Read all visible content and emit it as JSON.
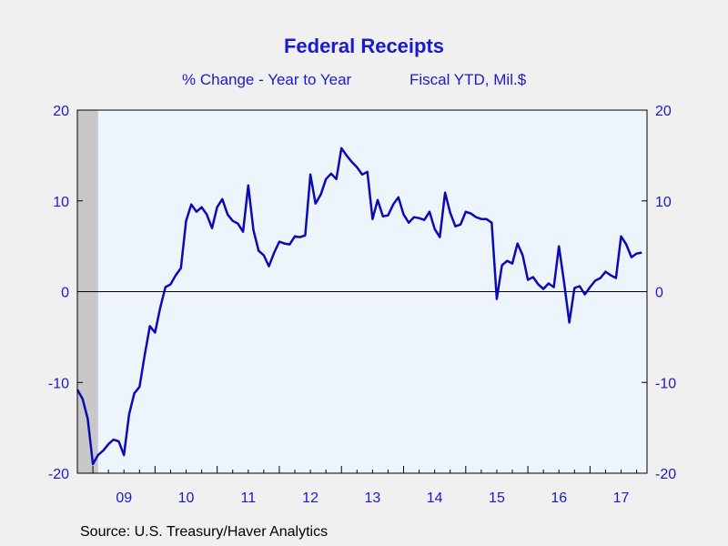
{
  "title": "Federal Receipts",
  "subtitle_left": "% Change - Year to Year",
  "subtitle_right": "Fiscal YTD, Mil.$",
  "source": "Source:  U.S. Treasury/Haver Analytics",
  "colors": {
    "title": "#1a1acc",
    "line": "#0a0ab4",
    "axis_labels": "#1a1acc",
    "plot_bg": "#eef4fc",
    "recession": "#c8c8c8"
  },
  "chart_data": {
    "type": "line",
    "title": "Federal Receipts",
    "subtitle": "% Change - Year to Year    Fiscal YTD, Mil.$",
    "ylim": [
      -20,
      20
    ],
    "yticks": [
      -20,
      -10,
      0,
      10,
      20
    ],
    "xlim": [
      2008.75,
      2017.917
    ],
    "xtick_labels": [
      {
        "label": "09",
        "center": 2009.5
      },
      {
        "label": "10",
        "center": 2010.5
      },
      {
        "label": "11",
        "center": 2011.5
      },
      {
        "label": "12",
        "center": 2012.5
      },
      {
        "label": "13",
        "center": 2013.5
      },
      {
        "label": "14",
        "center": 2014.5
      },
      {
        "label": "15",
        "center": 2015.5
      },
      {
        "label": "16",
        "center": 2016.5
      },
      {
        "label": "17",
        "center": 2017.5
      }
    ],
    "recession": [
      2008.75,
      2009.083
    ],
    "zero_line": true,
    "series": [
      {
        "x": [
          2008.75,
          2008.833,
          2008.917,
          2009.0,
          2009.083,
          2009.167,
          2009.25,
          2009.333,
          2009.417,
          2009.5,
          2009.583,
          2009.667,
          2009.75,
          2009.833,
          2009.917,
          2010.0,
          2010.083,
          2010.167,
          2010.25,
          2010.333,
          2010.417,
          2010.5,
          2010.583,
          2010.667,
          2010.75,
          2010.833,
          2010.917,
          2011.0,
          2011.083,
          2011.167,
          2011.25,
          2011.333,
          2011.417,
          2011.5,
          2011.583,
          2011.667,
          2011.75,
          2011.833,
          2011.917,
          2012.0,
          2012.083,
          2012.167,
          2012.25,
          2012.333,
          2012.417,
          2012.5,
          2012.583,
          2012.667,
          2012.75,
          2012.833,
          2012.917,
          2013.0,
          2013.083,
          2013.167,
          2013.25,
          2013.333,
          2013.417,
          2013.5,
          2013.583,
          2013.667,
          2013.75,
          2013.833,
          2013.917,
          2014.0,
          2014.083,
          2014.167,
          2014.25,
          2014.333,
          2014.417,
          2014.5,
          2014.583,
          2014.667,
          2014.75,
          2014.833,
          2014.917,
          2015.0,
          2015.083,
          2015.167,
          2015.25,
          2015.333,
          2015.417,
          2015.5,
          2015.583,
          2015.667,
          2015.75,
          2015.833,
          2015.917,
          2016.0,
          2016.083,
          2016.167,
          2016.25,
          2016.333,
          2016.417,
          2016.5,
          2016.583,
          2016.667,
          2016.75,
          2016.833,
          2016.917,
          2017.0,
          2017.083,
          2017.167,
          2017.25,
          2017.333,
          2017.417,
          2017.5,
          2017.583,
          2017.667,
          2017.75,
          2017.833
        ],
        "values": [
          -10.8,
          -11.8,
          -14.0,
          -19.0,
          -18.0,
          -17.5,
          -16.8,
          -16.3,
          -16.5,
          -18.0,
          -13.5,
          -11.2,
          -10.5,
          -7.0,
          -3.8,
          -4.5,
          -1.8,
          0.5,
          0.8,
          1.8,
          2.6,
          7.8,
          9.6,
          8.8,
          9.3,
          8.5,
          7.0,
          9.3,
          10.2,
          8.5,
          7.8,
          7.5,
          6.6,
          11.7,
          6.8,
          4.5,
          4.0,
          2.8,
          4.3,
          5.5,
          5.3,
          5.2,
          6.1,
          6.0,
          6.2,
          12.9,
          9.7,
          10.7,
          12.4,
          13.0,
          12.4,
          15.8,
          15.0,
          14.3,
          13.7,
          12.9,
          13.2,
          8.0,
          10.1,
          8.3,
          8.4,
          9.6,
          10.4,
          8.5,
          7.6,
          8.2,
          8.1,
          7.9,
          8.8,
          6.9,
          6.0,
          10.9,
          8.7,
          7.2,
          7.4,
          8.8,
          8.6,
          8.2,
          8.0,
          8.0,
          7.6,
          -0.8,
          2.9,
          3.4,
          3.1,
          5.3,
          4.0,
          1.3,
          1.6,
          0.8,
          0.3,
          0.9,
          0.5,
          5.0,
          1.0,
          -3.4,
          0.4,
          0.6,
          -0.3,
          0.5,
          1.2,
          1.5,
          2.2,
          1.8,
          1.5,
          6.1,
          5.2,
          3.8,
          4.2,
          4.3
        ]
      }
    ]
  }
}
